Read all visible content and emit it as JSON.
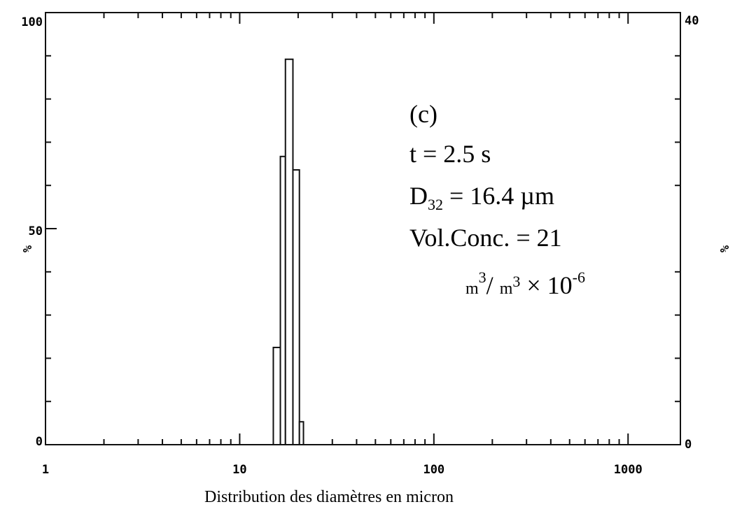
{
  "chart_data": {
    "type": "histogram",
    "bins": [
      14.9,
      16.2,
      17.2,
      18.8,
      20.3,
      21.3
    ],
    "values": [
      22.5,
      66.7,
      89.2,
      63.6,
      5.3
    ],
    "xlog": true,
    "xlim": [
      1,
      1860
    ],
    "xticks": [
      1,
      10,
      {
        "value": 100,
        "label": "100"
      },
      {
        "value": 1000,
        "label": "1000"
      }
    ],
    "xminorticks": [
      2,
      3,
      4,
      5,
      6,
      7,
      8,
      9,
      20,
      30,
      40,
      50,
      60,
      70,
      80,
      90,
      200,
      300,
      400,
      500,
      600,
      700,
      800,
      900
    ],
    "ylim": [
      0,
      100
    ],
    "yticks": [
      0,
      50,
      100
    ],
    "yminorticks": [
      10,
      20,
      30,
      40,
      60,
      70,
      80,
      90
    ],
    "y2lim": [
      0,
      40
    ],
    "y2ticks": [
      0,
      40
    ],
    "ylabel": "%",
    "y2label": "%",
    "xlabel": "Distribution des diamètres en micron",
    "annotations": [
      [
        "(c)"
      ],
      [
        "t = 2.5 s"
      ],
      [
        "D",
        "32",
        " = 16.4 µm"
      ],
      [
        "Vol.Conc. = 21"
      ],
      [
        "m",
        "3",
        "/ ",
        "m",
        "3",
        " × 10",
        "-6"
      ]
    ],
    "grid": false
  }
}
